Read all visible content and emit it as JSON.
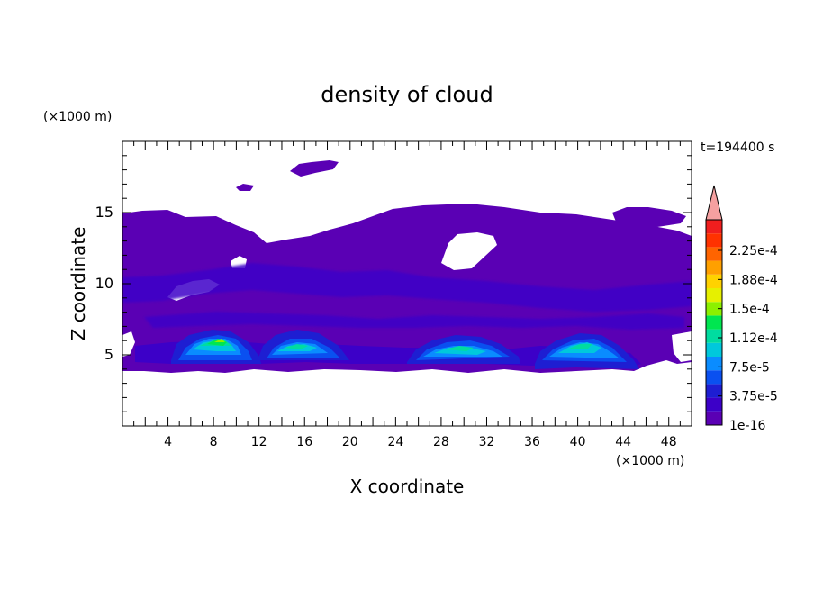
{
  "chart_data": {
    "type": "heatmap",
    "title": "density of cloud",
    "time_label": "t=194400 s",
    "xlabel": "X coordinate",
    "ylabel": "Z coordinate",
    "x_unit": "(×1000 m)",
    "y_unit": "(×1000 m)",
    "xlim": [
      0,
      50
    ],
    "ylim": [
      0,
      20
    ],
    "x_ticks": [
      4,
      8,
      12,
      16,
      20,
      24,
      28,
      32,
      36,
      40,
      44,
      48
    ],
    "y_ticks": [
      5,
      10,
      15
    ],
    "colorbar": {
      "labels": [
        "1e-16",
        "3.75e-5",
        "7.5e-5",
        "1.12e-4",
        "1.5e-4",
        "1.88e-4",
        "2.25e-4"
      ],
      "colors": [
        "#5a00b4",
        "#3c00c8",
        "#1e1ed2",
        "#0a50f0",
        "#0a8cff",
        "#00c8dc",
        "#00dca0",
        "#00e650",
        "#8cf000",
        "#e6f000",
        "#ffd200",
        "#ffa000",
        "#ff6400",
        "#ff3200",
        "#f01e1e"
      ],
      "extend_color": "#f5a0a0"
    },
    "regions": {
      "upper_cloud_deck_z": [
        4.5,
        15.5
      ],
      "high_patch_z": [
        16.8,
        18.5
      ],
      "max_density_cells": [
        {
          "x_range": [
            5,
            11
          ],
          "peak_z": 6.0
        },
        {
          "x_range": [
            12,
            19
          ],
          "peak_z": 5.8
        },
        {
          "x_range": [
            26,
            34
          ],
          "peak_z": 5.5
        },
        {
          "x_range": [
            37,
            45
          ],
          "peak_z": 5.8
        }
      ]
    }
  }
}
